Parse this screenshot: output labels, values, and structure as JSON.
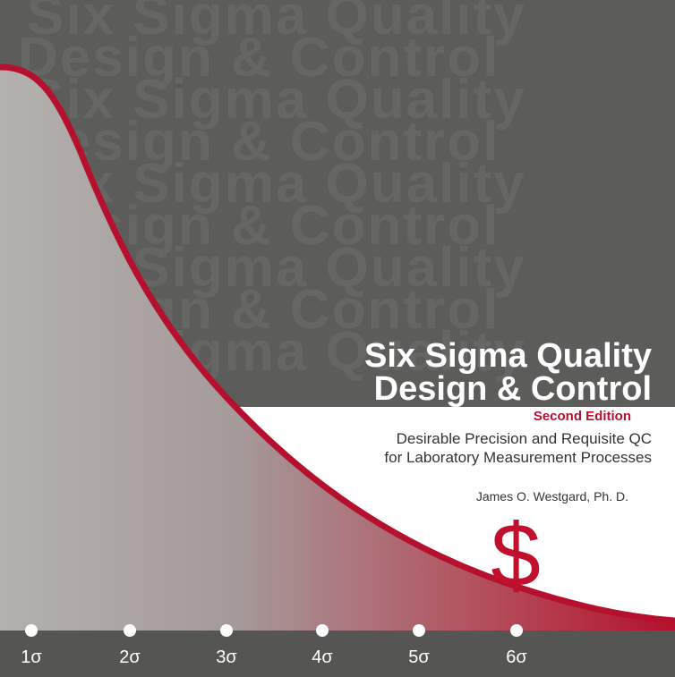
{
  "watermark": [
    "Six Sigma Quality",
    "Design & Control"
  ],
  "title": [
    "Six Sigma Quality",
    "Design & Control"
  ],
  "edition": "Second Edition",
  "subtitle": [
    "Desirable Precision and Requisite QC",
    "for Laboratory Measurement Processes"
  ],
  "author": "James O. Westgard, Ph. D.",
  "symbol": "$",
  "sigma_labels": [
    "1σ",
    "2σ",
    "3σ",
    "4σ",
    "5σ",
    "6σ"
  ]
}
